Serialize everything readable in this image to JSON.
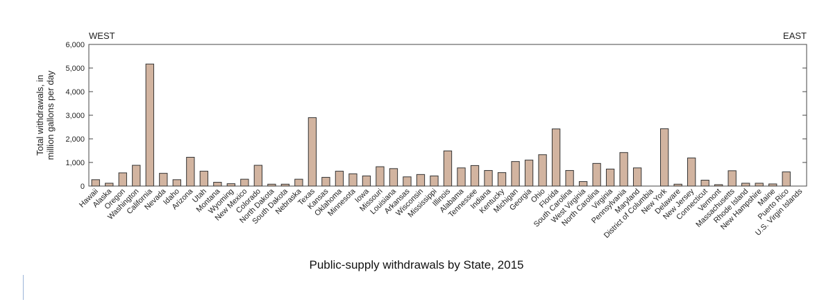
{
  "caption": "Public-supply withdrawals by State, 2015",
  "chart_data": {
    "type": "bar",
    "ylabel": [
      "Total withdrawals, in",
      "million gallons per day"
    ],
    "xlabel": "",
    "ylim": [
      0,
      6000
    ],
    "yticks": [
      0,
      1000,
      2000,
      3000,
      4000,
      5000,
      6000
    ],
    "ytick_labels": [
      "0",
      "1,000",
      "2,000",
      "3,000",
      "4,000",
      "5,000",
      "6,000"
    ],
    "region_labels": {
      "left": "WEST",
      "right": "EAST"
    },
    "grid": false,
    "bar_color": "#d2b4a0",
    "bar_edge_color": "#333333",
    "categories": [
      "Hawaii",
      "Alaska",
      "Oregon",
      "Washington",
      "California",
      "Nevada",
      "Idaho",
      "Arizona",
      "Utah",
      "Montana",
      "Wyoming",
      "New Mexico",
      "Colorado",
      "North Dakota",
      "South Dakota",
      "Nebraska",
      "Texas",
      "Kansas",
      "Oklahoma",
      "Minnesota",
      "Iowa",
      "Missouri",
      "Louisiana",
      "Arkansas",
      "Wisconsin",
      "Mississippi",
      "Illinois",
      "Alabama",
      "Tennessee",
      "Indiana",
      "Kentucky",
      "Michigan",
      "Georgia",
      "Ohio",
      "Florida",
      "South Carolina",
      "West Virginia",
      "North Carolina",
      "Virginia",
      "Pennsylvania",
      "Maryland",
      "District of Columbia",
      "New York",
      "Delaware",
      "New Jersey",
      "Connecticut",
      "Vermont",
      "Massachusetts",
      "Rhode Island",
      "New Hampshire",
      "Maine",
      "Puerto Rico",
      "U.S. Virgin Islands"
    ],
    "values": [
      270,
      120,
      560,
      880,
      5170,
      540,
      270,
      1220,
      630,
      160,
      100,
      290,
      880,
      80,
      80,
      290,
      2900,
      370,
      630,
      520,
      430,
      820,
      740,
      390,
      490,
      430,
      1490,
      770,
      870,
      660,
      570,
      1040,
      1100,
      1330,
      2420,
      660,
      190,
      960,
      720,
      1420,
      770,
      0,
      2430,
      80,
      1190,
      250,
      60,
      650,
      120,
      120,
      90,
      600,
      0
    ]
  }
}
